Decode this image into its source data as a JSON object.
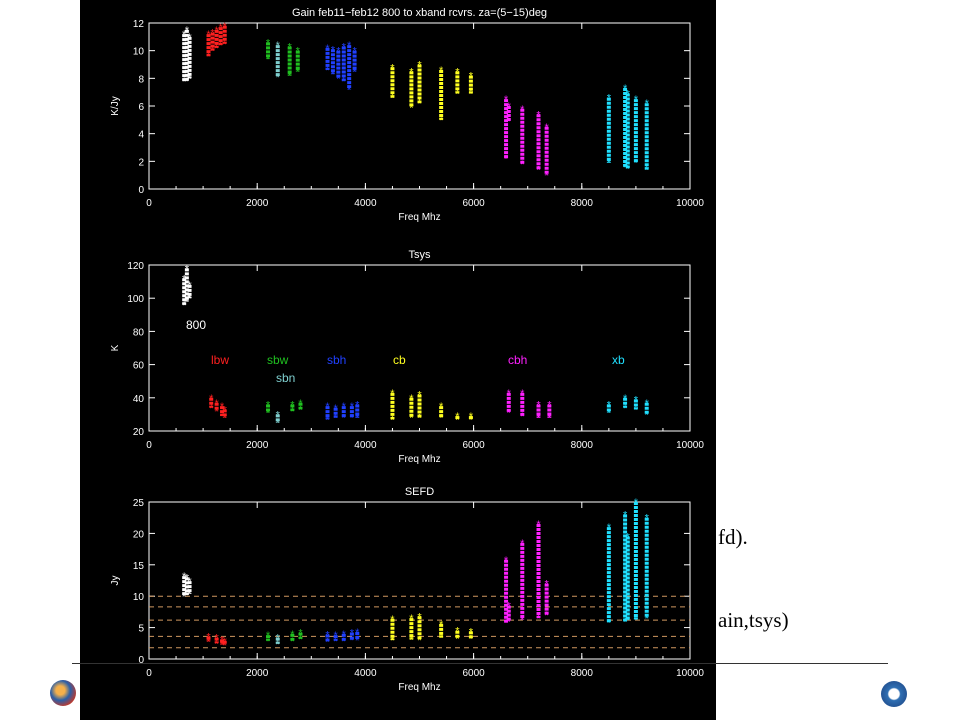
{
  "slide": {
    "fragment_1": "fd).",
    "fragment_2": "ain,tsys)"
  },
  "colors": {
    "800": "#ffffff",
    "lbw": "#ff2020",
    "sbw": "#20c020",
    "sbn": "#7fd0d0",
    "sbh": "#2040ff",
    "cb": "#ffff20",
    "cbh": "#ff20ff",
    "xb": "#20e0ff",
    "axes": "#ffffff",
    "ref_lines": "#d09860"
  },
  "chart_data": [
    {
      "type": "scatter",
      "title": "Gain feb11−feb12 800 to xband rcvrs. za=(5−15)deg",
      "xlabel": "Freq Mhz",
      "ylabel": "K/Jy",
      "xlim": [
        0,
        10000
      ],
      "ylim": [
        0,
        12
      ],
      "xticks": [
        "0",
        "2000",
        "4000",
        "6000",
        "8000",
        "10000"
      ],
      "yticks": [
        "0",
        "2",
        "4",
        "6",
        "8",
        "10",
        "12"
      ],
      "series": [
        {
          "key": "800",
          "x": [
            650,
            700,
            750
          ],
          "ymin": [
            7.8,
            7.8,
            8.0
          ],
          "ymax": [
            11.2,
            11.5,
            11.0
          ]
        },
        {
          "key": "lbw",
          "x": [
            1100,
            1175,
            1250,
            1325,
            1400
          ],
          "ymin": [
            9.6,
            10.0,
            10.2,
            10.4,
            10.5
          ],
          "ymax": [
            11.2,
            11.3,
            11.5,
            11.7,
            11.8
          ]
        },
        {
          "key": "sbw",
          "x": [
            2200,
            2600,
            2750
          ],
          "ymin": [
            9.4,
            8.2,
            8.5
          ],
          "ymax": [
            10.6,
            10.3,
            10.0
          ]
        },
        {
          "key": "sbn",
          "x": [
            2380
          ],
          "ymin": [
            8.1
          ],
          "ymax": [
            10.4
          ]
        },
        {
          "key": "sbh",
          "x": [
            3300,
            3400,
            3500,
            3600,
            3700,
            3800
          ],
          "ymin": [
            8.6,
            8.3,
            8.0,
            7.8,
            7.2,
            8.5
          ],
          "ymax": [
            10.2,
            10.1,
            10.0,
            10.3,
            10.4,
            10.0
          ]
        },
        {
          "key": "cb",
          "x": [
            4500,
            4850,
            5000,
            5400,
            5700,
            5950
          ],
          "ymin": [
            6.6,
            5.9,
            6.2,
            5.0,
            6.9,
            6.9
          ],
          "ymax": [
            8.8,
            8.5,
            9.0,
            8.6,
            8.5,
            8.2
          ]
        },
        {
          "key": "cbh",
          "x": [
            6600,
            6650,
            6900,
            7200,
            7350
          ],
          "ymin": [
            2.2,
            4.9,
            1.8,
            1.4,
            1.0
          ],
          "ymax": [
            6.5,
            6.0,
            5.8,
            5.4,
            4.5
          ]
        },
        {
          "key": "xb",
          "x": [
            8500,
            8800,
            8850,
            9000,
            9200
          ],
          "ymin": [
            1.9,
            1.6,
            1.5,
            1.9,
            1.4
          ],
          "ymax": [
            6.6,
            7.3,
            6.9,
            6.5,
            6.2
          ]
        }
      ]
    },
    {
      "type": "scatter",
      "title": "Tsys",
      "xlabel": "Freq Mhz",
      "ylabel": "K",
      "xlim": [
        0,
        10000
      ],
      "ylim": [
        20,
        120
      ],
      "xticks": [
        "0",
        "2000",
        "4000",
        "6000",
        "8000",
        "10000"
      ],
      "yticks": [
        "20",
        "40",
        "60",
        "80",
        "100",
        "120"
      ],
      "annotations": [
        "800",
        "lbw",
        "sbw",
        "sbn",
        "sbh",
        "cb",
        "cbh",
        "xb"
      ],
      "series": [
        {
          "key": "800",
          "x": [
            650,
            700,
            750
          ],
          "ymin": [
            96,
            98,
            100
          ],
          "ymax": [
            112,
            118,
            108
          ]
        },
        {
          "key": "lbw",
          "x": [
            1150,
            1250,
            1350,
            1400
          ],
          "ymin": [
            34,
            32,
            29,
            28
          ],
          "ymax": [
            40,
            37,
            35,
            33
          ]
        },
        {
          "key": "sbw",
          "x": [
            2200,
            2650,
            2800
          ],
          "ymin": [
            31,
            32,
            33
          ],
          "ymax": [
            36,
            36,
            37
          ]
        },
        {
          "key": "sbn",
          "x": [
            2380
          ],
          "ymin": [
            25
          ],
          "ymax": [
            30
          ]
        },
        {
          "key": "sbh",
          "x": [
            3300,
            3450,
            3600,
            3750,
            3850
          ],
          "ymin": [
            27,
            28,
            28,
            28,
            28
          ],
          "ymax": [
            35,
            34,
            35,
            35,
            36
          ]
        },
        {
          "key": "cb",
          "x": [
            4500,
            4850,
            5000,
            5400,
            5700,
            5950
          ],
          "ymin": [
            27,
            28,
            28,
            28,
            27,
            27
          ],
          "ymax": [
            43,
            40,
            42,
            35,
            29,
            29
          ]
        },
        {
          "key": "cbh",
          "x": [
            6650,
            6900,
            7200,
            7400
          ],
          "ymin": [
            31,
            29,
            28,
            28
          ],
          "ymax": [
            43,
            43,
            36,
            36
          ]
        },
        {
          "key": "xb",
          "x": [
            8500,
            8800,
            9000,
            9200
          ],
          "ymin": [
            31,
            34,
            33,
            30
          ],
          "ymax": [
            36,
            40,
            39,
            37
          ]
        }
      ]
    },
    {
      "type": "scatter",
      "title": "SEFD",
      "xlabel": "Freq Mhz",
      "ylabel": "Jy",
      "xlim": [
        0,
        10000
      ],
      "ylim": [
        0,
        25
      ],
      "xticks": [
        "0",
        "2000",
        "4000",
        "6000",
        "8000",
        "10000"
      ],
      "yticks": [
        "0",
        "5",
        "10",
        "15",
        "20",
        "25"
      ],
      "hlines": [
        1.8,
        3.6,
        6.2,
        8.3,
        10.0
      ],
      "series": [
        {
          "key": "800",
          "x": [
            650,
            700,
            750
          ],
          "ymin": [
            10.0,
            10.2,
            10.4
          ],
          "ymax": [
            13.2,
            13.0,
            12.4
          ]
        },
        {
          "key": "lbw",
          "x": [
            1100,
            1250,
            1350,
            1400
          ],
          "ymin": [
            2.8,
            2.5,
            2.3,
            2.2
          ],
          "ymax": [
            3.6,
            3.4,
            3.1,
            2.9
          ]
        },
        {
          "key": "sbw",
          "x": [
            2200,
            2650,
            2800
          ],
          "ymin": [
            2.9,
            2.9,
            3.2
          ],
          "ymax": [
            3.8,
            4.0,
            4.2
          ]
        },
        {
          "key": "sbn",
          "x": [
            2380
          ],
          "ymin": [
            2.4
          ],
          "ymax": [
            3.4
          ]
        },
        {
          "key": "sbh",
          "x": [
            3300,
            3450,
            3600,
            3750,
            3850
          ],
          "ymin": [
            2.8,
            2.9,
            2.9,
            3.0,
            3.0
          ],
          "ymax": [
            3.9,
            3.8,
            4.0,
            4.2,
            4.3
          ]
        },
        {
          "key": "cb",
          "x": [
            4500,
            4850,
            5000,
            5400,
            5700,
            5950
          ],
          "ymin": [
            3.0,
            3.1,
            3.0,
            3.4,
            3.3,
            3.3
          ],
          "ymax": [
            6.4,
            6.5,
            6.8,
            5.6,
            4.5,
            4.4
          ]
        },
        {
          "key": "cbh",
          "x": [
            6600,
            6650,
            6900,
            7200,
            7350
          ],
          "ymin": [
            5.8,
            6.0,
            6.3,
            6.5,
            7.0
          ],
          "ymax": [
            15.8,
            8.5,
            18.5,
            21.5,
            12.0
          ]
        },
        {
          "key": "xb",
          "x": [
            8500,
            8800,
            8850,
            9000,
            9200
          ],
          "ymin": [
            5.8,
            6.0,
            6.2,
            6.3,
            6.5
          ],
          "ymax": [
            21.0,
            23.0,
            19.5,
            25.0,
            22.5
          ]
        }
      ]
    }
  ]
}
